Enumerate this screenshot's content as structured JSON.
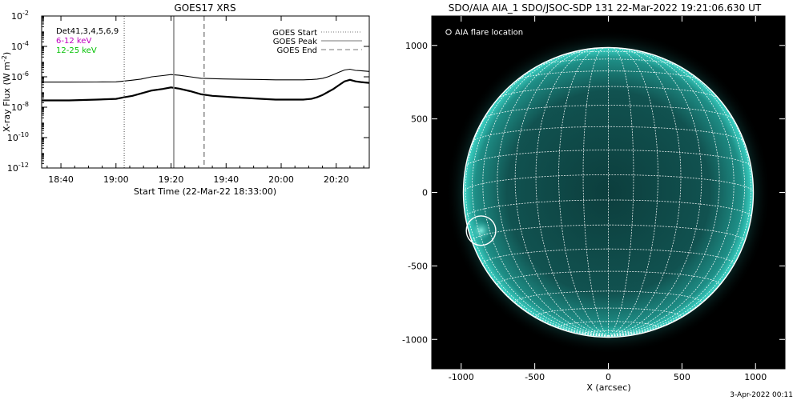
{
  "footer": {
    "timestamp": "3-Apr-2022 00:11"
  },
  "chart_data": [
    {
      "type": "line",
      "title": "GOES17 XRS",
      "xlabel": "Start Time (22-Mar-22 18:33:00)",
      "ylabel_main": "X-ray Flux (W m",
      "ylabel_sup": "-2",
      "ylabel_close": ")",
      "x_ticks": [
        {
          "minutes": 7,
          "label": "18:40"
        },
        {
          "minutes": 27,
          "label": "19:00"
        },
        {
          "minutes": 47,
          "label": "19:20"
        },
        {
          "minutes": 67,
          "label": "19:40"
        },
        {
          "minutes": 87,
          "label": "20:00"
        },
        {
          "minutes": 107,
          "label": "20:20"
        }
      ],
      "x_range_minutes": [
        0,
        119
      ],
      "y_log_range": [
        -12,
        -2
      ],
      "y_ticks": [
        {
          "exp": -12,
          "base": "10",
          "sup": "-12"
        },
        {
          "exp": -10,
          "base": "10",
          "sup": "-10"
        },
        {
          "exp": -8,
          "base": "10",
          "sup": "-8"
        },
        {
          "exp": -6,
          "base": "10",
          "sup": "-6"
        },
        {
          "exp": -4,
          "base": "10",
          "sup": "-4"
        },
        {
          "exp": -2,
          "base": "10",
          "sup": "-2"
        }
      ],
      "detector_label": "Det41,3,4,5,6,9",
      "series": [
        {
          "name": "6-12 keV",
          "color": "#c000c0",
          "x": [
            0,
            10,
            20,
            27,
            30,
            33,
            36,
            40,
            44,
            47,
            50,
            54,
            58,
            62,
            66,
            70,
            75,
            80,
            85,
            90,
            95,
            98,
            100,
            102,
            104,
            106,
            108,
            110,
            112,
            114,
            116,
            119
          ],
          "log_flux": [
            -6.35,
            -6.35,
            -6.34,
            -6.33,
            -6.28,
            -6.22,
            -6.15,
            -6.0,
            -5.92,
            -5.85,
            -5.9,
            -6.0,
            -6.1,
            -6.12,
            -6.14,
            -6.15,
            -6.17,
            -6.18,
            -6.2,
            -6.2,
            -6.2,
            -6.18,
            -6.15,
            -6.1,
            -6.0,
            -5.85,
            -5.7,
            -5.55,
            -5.5,
            -5.58,
            -5.6,
            -5.65
          ]
        },
        {
          "name": "12-25 keV",
          "color": "#00c000",
          "x": [
            0,
            10,
            20,
            27,
            30,
            33,
            36,
            40,
            44,
            47,
            50,
            54,
            58,
            62,
            66,
            70,
            75,
            80,
            85,
            90,
            95,
            98,
            100,
            102,
            104,
            106,
            108,
            110,
            112,
            114,
            116,
            119
          ],
          "log_flux": [
            -7.55,
            -7.55,
            -7.5,
            -7.45,
            -7.35,
            -7.25,
            -7.1,
            -6.9,
            -6.8,
            -6.7,
            -6.78,
            -6.95,
            -7.15,
            -7.25,
            -7.3,
            -7.35,
            -7.4,
            -7.45,
            -7.5,
            -7.5,
            -7.5,
            -7.45,
            -7.35,
            -7.2,
            -7.0,
            -6.8,
            -6.55,
            -6.3,
            -6.2,
            -6.3,
            -6.35,
            -6.4
          ]
        }
      ],
      "event_lines": [
        {
          "name": "GOES Start",
          "minutes": 30,
          "style": "dotted"
        },
        {
          "name": "GOES Peak",
          "minutes": 48,
          "style": "solid"
        },
        {
          "name": "GOES End",
          "minutes": 59,
          "style": "dashed"
        }
      ],
      "legend_placement": "top-right"
    },
    {
      "type": "map",
      "title": "SDO/AIA AIA_1 SDO/JSOC-SDP 131 22-Mar-2022 19:21:06.630 UT",
      "xlabel": "X (arcsec)",
      "x_range": [
        -1200,
        1200
      ],
      "y_range": [
        -1200,
        1200
      ],
      "x_ticks": [
        -1000,
        -500,
        0,
        500,
        1000
      ],
      "y_ticks": [
        -1000,
        -500,
        0,
        500,
        1000
      ],
      "x_tick_labels": [
        "-1000",
        "-500",
        "0",
        "500",
        "1000"
      ],
      "y_tick_labels": [
        "-1000",
        "-500",
        "0",
        "500",
        "1000"
      ],
      "solar_radius_arcsec": 985,
      "grid_spacing_deg": 10,
      "b0_deg": -7,
      "legend_label": "AIA flare location",
      "flare_location": {
        "x_arcsec": -865,
        "y_arcsec": -260,
        "radius_arcsec": 100
      },
      "disk_color": "#0f4a48",
      "limb_color": "#2fd0c0"
    }
  ]
}
